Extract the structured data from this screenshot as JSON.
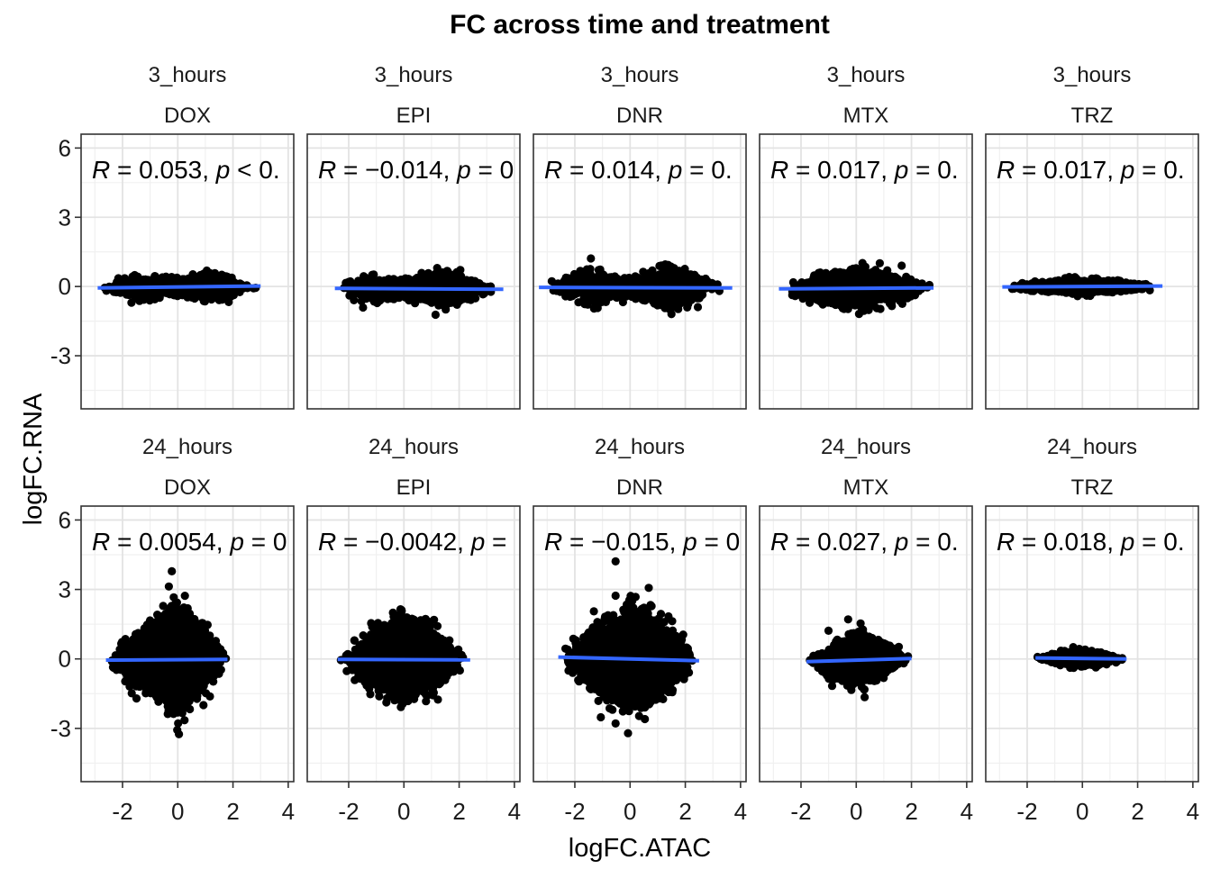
{
  "chart_data": {
    "type": "scatter",
    "title": "FC across time and treatment",
    "xlabel": "logFC.ATAC",
    "ylabel": "logFC.RNA",
    "xlim": [
      -3.5,
      4.2
    ],
    "ylim": [
      -5.3,
      6.6
    ],
    "x_ticks": [
      -2,
      0,
      2,
      4
    ],
    "x_tick_labels": [
      "-2",
      "0",
      "2",
      "4"
    ],
    "y_ticks": [
      -3,
      0,
      3,
      6
    ],
    "y_tick_labels": [
      "-3",
      "0",
      "3",
      "6"
    ],
    "grid": true,
    "legend": "none",
    "point_color": "#000000",
    "line_color": "#3366FF",
    "strip_labels_top": [
      "3_hours",
      "24_hours"
    ],
    "panels": [
      {
        "time": "3_hours",
        "treatment": "DOX",
        "r": "0.053",
        "p_text": "p < 0.",
        "fit": [
          [
            -2.9,
            -0.06
          ],
          [
            3.0,
            0.02
          ]
        ],
        "spread": [
          [
            -2.9,
            0.15
          ],
          [
            -1.5,
            0.8
          ],
          [
            -0.3,
            0.5
          ],
          [
            0.3,
            0.5
          ],
          [
            1.5,
            1.0
          ],
          [
            3.0,
            0.15
          ]
        ],
        "n": 1400,
        "seed": 11
      },
      {
        "time": "3_hours",
        "treatment": "EPI",
        "r": "−0.014",
        "p_text": "p = 0",
        "fit": [
          [
            -2.5,
            -0.08
          ],
          [
            3.6,
            -0.12
          ]
        ],
        "spread": [
          [
            -2.5,
            0.3
          ],
          [
            -1.5,
            1.1
          ],
          [
            -0.3,
            0.5
          ],
          [
            0.3,
            0.6
          ],
          [
            1.5,
            1.2
          ],
          [
            3.6,
            0.15
          ]
        ],
        "n": 1600,
        "seed": 23
      },
      {
        "time": "3_hours",
        "treatment": "DNR",
        "r": "0.014",
        "p_text": "p = 0.",
        "fit": [
          [
            -3.3,
            -0.04
          ],
          [
            3.7,
            -0.06
          ]
        ],
        "spread": [
          [
            -3.3,
            0.15
          ],
          [
            -1.5,
            1.4
          ],
          [
            -0.3,
            0.5
          ],
          [
            0.3,
            0.6
          ],
          [
            1.5,
            1.5
          ],
          [
            3.7,
            0.15
          ]
        ],
        "n": 1600,
        "seed": 37
      },
      {
        "time": "3_hours",
        "treatment": "MTX",
        "r": "0.017",
        "p_text": "p = 0.",
        "fit": [
          [
            -2.8,
            -0.1
          ],
          [
            2.8,
            -0.06
          ]
        ],
        "spread": [
          [
            -2.8,
            0.2
          ],
          [
            -1.5,
            0.9
          ],
          [
            0.0,
            1.2
          ],
          [
            1.5,
            0.9
          ],
          [
            2.8,
            0.2
          ]
        ],
        "n": 1500,
        "seed": 41
      },
      {
        "time": "3_hours",
        "treatment": "TRZ",
        "r": "0.017",
        "p_text": "p = 0.",
        "fit": [
          [
            -2.9,
            -0.02
          ],
          [
            2.9,
            0.02
          ]
        ],
        "spread": [
          [
            -2.9,
            0.1
          ],
          [
            -1.0,
            0.4
          ],
          [
            0.0,
            0.5
          ],
          [
            1.0,
            0.4
          ],
          [
            2.9,
            0.1
          ]
        ],
        "n": 1200,
        "seed": 53
      },
      {
        "time": "24_hours",
        "treatment": "DOX",
        "r": "0.0054",
        "p_text": "p = 0",
        "fit": [
          [
            -2.6,
            -0.05
          ],
          [
            1.8,
            -0.02
          ]
        ],
        "spread": [
          [
            -2.6,
            0.6
          ],
          [
            -1.2,
            1.8
          ],
          [
            0.0,
            3.3
          ],
          [
            1.0,
            2.2
          ],
          [
            1.8,
            0.4
          ]
        ],
        "n": 3500,
        "seed": 61
      },
      {
        "time": "24_hours",
        "treatment": "EPI",
        "r": "−0.0042",
        "p_text": "p =",
        "fit": [
          [
            -2.4,
            -0.02
          ],
          [
            2.4,
            -0.04
          ]
        ],
        "spread": [
          [
            -2.4,
            0.3
          ],
          [
            -1.2,
            1.8
          ],
          [
            0.0,
            2.6
          ],
          [
            1.2,
            1.8
          ],
          [
            2.4,
            0.3
          ]
        ],
        "n": 3500,
        "seed": 73
      },
      {
        "time": "24_hours",
        "treatment": "DNR",
        "r": "−0.015",
        "p_text": "p = 0",
        "fit": [
          [
            -2.6,
            0.08
          ],
          [
            2.5,
            -0.08
          ]
        ],
        "spread": [
          [
            -2.6,
            0.6
          ],
          [
            -1.2,
            2.2
          ],
          [
            0.0,
            3.2
          ],
          [
            1.2,
            2.2
          ],
          [
            2.5,
            0.6
          ]
        ],
        "n": 3500,
        "seed": 89
      },
      {
        "time": "24_hours",
        "treatment": "MTX",
        "r": "0.027",
        "p_text": "p = 0.",
        "fit": [
          [
            -1.8,
            -0.12
          ],
          [
            2.0,
            0.02
          ]
        ],
        "spread": [
          [
            -1.8,
            0.3
          ],
          [
            -0.8,
            1.1
          ],
          [
            0.1,
            1.6
          ],
          [
            1.0,
            1.1
          ],
          [
            2.0,
            0.3
          ]
        ],
        "n": 1800,
        "seed": 97
      },
      {
        "time": "24_hours",
        "treatment": "TRZ",
        "r": "0.018",
        "p_text": "p = 0.",
        "fit": [
          [
            -1.7,
            0.04
          ],
          [
            1.6,
            0.0
          ]
        ],
        "spread": [
          [
            -1.7,
            0.1
          ],
          [
            -0.5,
            0.5
          ],
          [
            0.3,
            0.5
          ],
          [
            1.6,
            0.1
          ]
        ],
        "n": 1000,
        "seed": 101
      }
    ]
  }
}
